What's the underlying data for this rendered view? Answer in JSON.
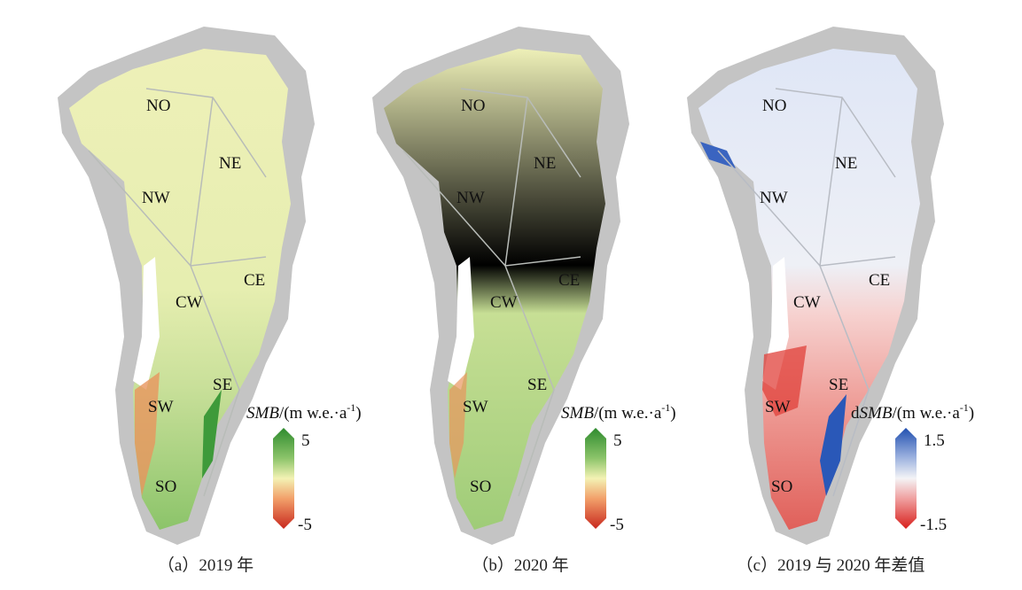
{
  "panels": [
    {
      "caption": "（a）2019 年",
      "regions": {
        "NO": "NO",
        "NE": "NE",
        "NW": "NW",
        "CW": "CW",
        "CE": "CE",
        "SW": "SW",
        "SE": "SE",
        "SO": "SO"
      },
      "colorbar": {
        "var_prefix": "",
        "var": "SMB",
        "unit": "/(m w.e.·a",
        "exp": "-1",
        "close": ")",
        "max": "5",
        "min": "-5",
        "colors": [
          "#2e8b2e",
          "#8cc46a",
          "#f3f2b4",
          "#f2a06a",
          "#c8281e"
        ]
      }
    },
    {
      "caption": "（b）2020 年",
      "regions": {
        "NO": "NO",
        "NE": "NE",
        "NW": "NW",
        "CW": "CW",
        "CE": "CE",
        "SW": "SW",
        "SE": "SE",
        "SO": "SO"
      },
      "colorbar": {
        "var_prefix": "",
        "var": "SMB",
        "unit": "/(m w.e.·a",
        "exp": "-1",
        "close": ")",
        "max": "5",
        "min": "-5",
        "colors": [
          "#2e8b2e",
          "#8cc46a",
          "#f3f2b4",
          "#f2a06a",
          "#c8281e"
        ]
      }
    },
    {
      "caption": "（c）2019 与 2020 年差值",
      "regions": {
        "NO": "NO",
        "NE": "NE",
        "NW": "NW",
        "CW": "CW",
        "CE": "CE",
        "SW": "SW",
        "SE": "SE",
        "SO": "SO"
      },
      "colorbar": {
        "var_prefix": "d",
        "var": "SMB",
        "unit": "/(m w.e.·a",
        "exp": "-1",
        "close": ")",
        "max": "1.5",
        "min": "-1.5",
        "colors": [
          "#2150b0",
          "#9fb4e0",
          "#f4f4f6",
          "#f0a0a0",
          "#d8201c"
        ]
      }
    }
  ]
}
